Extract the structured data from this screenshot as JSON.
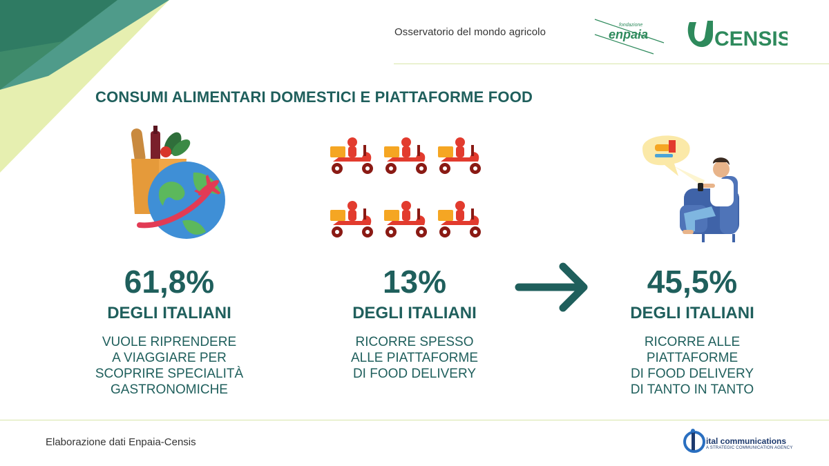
{
  "header": {
    "observatory": "Osservatorio del mondo agricolo",
    "enpaia_small": "fondazione",
    "enpaia_name": "enpaia",
    "censis_name": "CENSIS"
  },
  "title": "CONSUMI ALIMENTARI DOMESTICI E PIATTAFORME FOOD",
  "stats": [
    {
      "value": "61,8%",
      "subject": "DEGLI ITALIANI",
      "desc": [
        "VUOLE RIPRENDERE",
        "A VIAGGIARE PER",
        "SCOPRIRE SPECIALITÀ",
        "GASTRONOMICHE"
      ],
      "icon": "food-bag-globe-plane-icon"
    },
    {
      "value": "13%",
      "subject": "DEGLI ITALIANI",
      "desc": [
        "RICORRE SPESSO",
        "ALLE PIATTAFORME",
        "DI FOOD DELIVERY"
      ],
      "icon": "delivery-scooters-icon"
    },
    {
      "value": "45,5%",
      "subject": "DEGLI ITALIANI",
      "desc": [
        "RICORRE ALLE",
        "PIATTAFORME",
        "DI FOOD DELIVERY",
        "DI TANTO IN TANTO"
      ],
      "icon": "person-ordering-food-icon"
    }
  ],
  "footer": {
    "source": "Elaborazione dati Enpaia-Censis",
    "agency_name": "ital communications",
    "agency_tagline": "A STRATEGIC COMMUNICATION AGENCY"
  },
  "colors": {
    "primary": "#1f5f5c",
    "accent_green": "#2e7d5b",
    "lime": "#d6e88a",
    "scooter_red": "#e23b2e",
    "box_orange": "#f5a623"
  }
}
